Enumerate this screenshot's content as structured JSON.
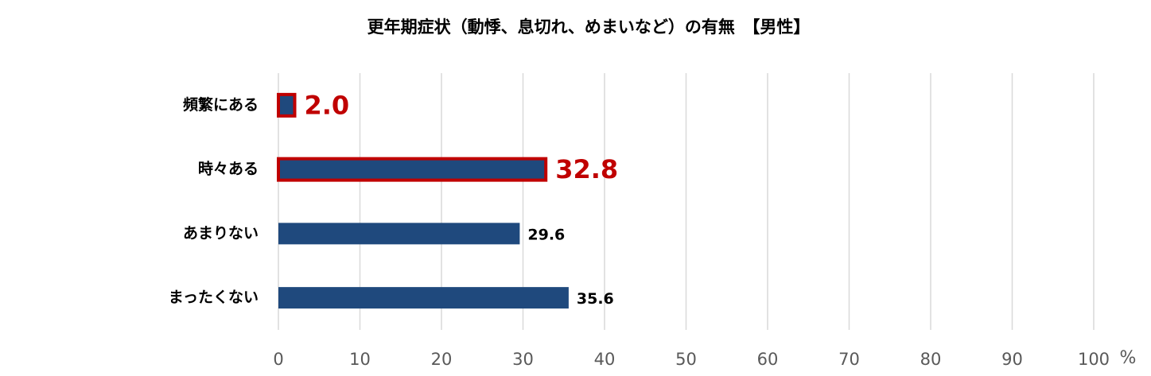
{
  "chart_data": {
    "type": "bar",
    "orientation": "horizontal",
    "title": "更年期症状（動悸、息切れ、めまいなど）の有無　【男性】",
    "categories": [
      "頻繁にある",
      "時々ある",
      "あまりない",
      "まったくない"
    ],
    "values": [
      2.0,
      32.8,
      29.6,
      35.6
    ],
    "value_labels": [
      "2.0",
      "32.8",
      "29.6",
      "35.6"
    ],
    "highlighted": [
      true,
      true,
      false,
      false
    ],
    "color": "#1f497d",
    "highlight_color": "#c00000",
    "xlim": [
      0,
      100
    ],
    "xticks": [
      0,
      10,
      20,
      30,
      40,
      50,
      60,
      70,
      80,
      90,
      100
    ],
    "x_unit": "%",
    "grid": true
  }
}
